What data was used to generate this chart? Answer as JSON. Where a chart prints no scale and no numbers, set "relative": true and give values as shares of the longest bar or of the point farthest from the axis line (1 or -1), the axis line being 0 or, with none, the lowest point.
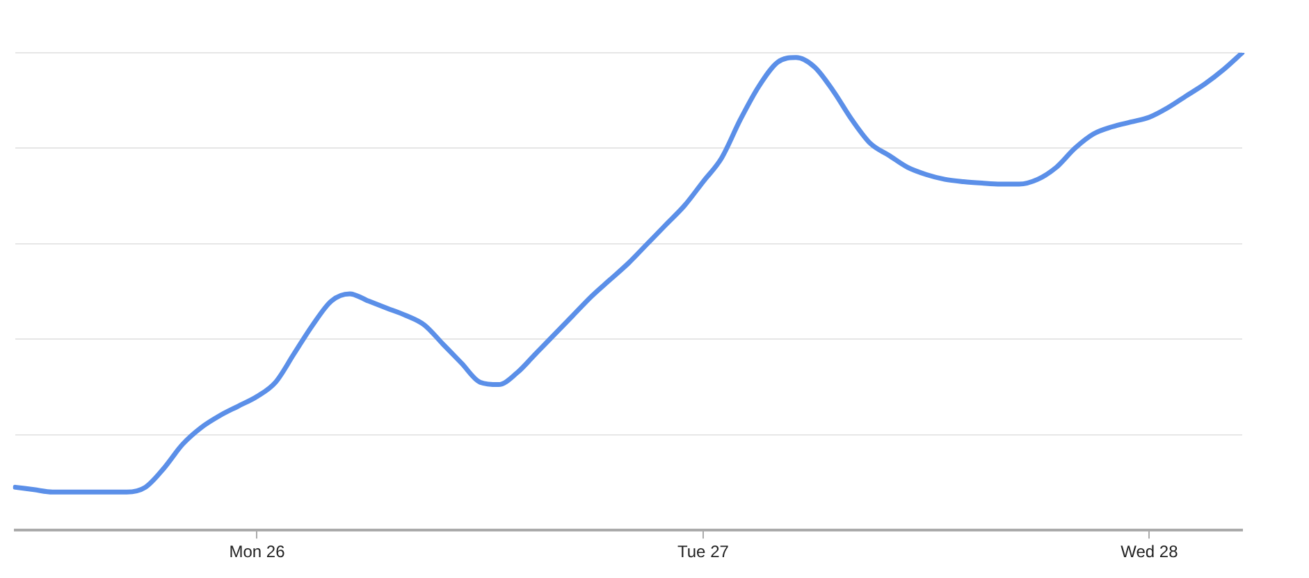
{
  "chart_data": {
    "type": "line",
    "relative": true,
    "grid": "y",
    "legend": false,
    "marker": "none",
    "line_style": "solid",
    "categories": [
      null,
      null,
      null,
      null,
      null,
      null,
      null,
      null,
      null,
      null,
      null,
      null,
      null,
      "Mon 26",
      null,
      null,
      null,
      null,
      null,
      null,
      null,
      null,
      null,
      null,
      null,
      null,
      null,
      null,
      null,
      null,
      null,
      null,
      null,
      null,
      null,
      null,
      null,
      "Tue 27",
      null,
      null,
      null,
      null,
      null,
      null,
      null,
      null,
      null,
      null,
      null,
      null,
      null,
      null,
      null,
      null,
      null,
      null,
      null,
      null,
      null,
      null,
      null,
      "Wed 28",
      null,
      null,
      null,
      null,
      null
    ],
    "series": [
      {
        "color": "#5b8fe8",
        "values": [
          0.09,
          0.085,
          0.08,
          0.08,
          0.08,
          0.08,
          0.08,
          0.09,
          0.13,
          0.18,
          0.215,
          0.24,
          0.26,
          0.28,
          0.31,
          0.37,
          0.43,
          0.48,
          0.495,
          0.48,
          0.465,
          0.45,
          0.43,
          0.39,
          0.35,
          0.31,
          0.305,
          0.33,
          0.37,
          0.41,
          0.45,
          0.49,
          0.525,
          0.56,
          0.6,
          0.64,
          0.68,
          0.73,
          0.78,
          0.86,
          0.93,
          0.98,
          0.99,
          0.97,
          0.92,
          0.86,
          0.81,
          0.785,
          0.76,
          0.745,
          0.735,
          0.73,
          0.727,
          0.725,
          0.725,
          0.735,
          0.76,
          0.8,
          0.83,
          0.845,
          0.855,
          0.865,
          0.885,
          0.91,
          0.935,
          0.965,
          1.0
        ]
      }
    ]
  }
}
